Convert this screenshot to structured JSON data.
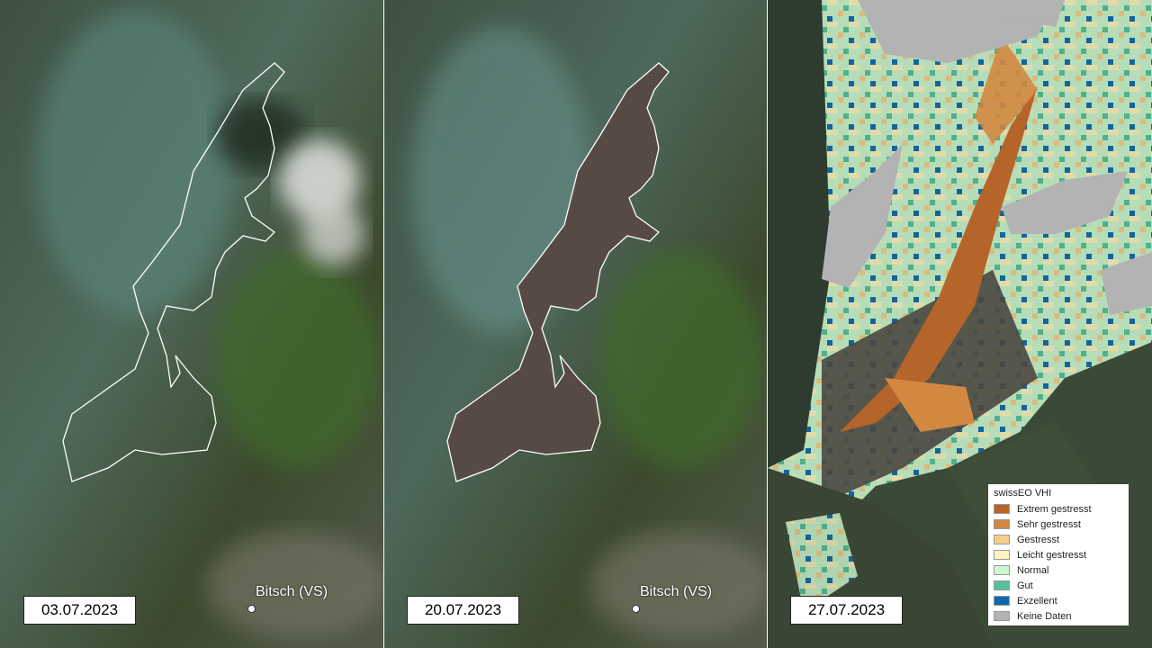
{
  "panels": [
    {
      "date": "03.07.2023",
      "place": "Bitsch (VS)"
    },
    {
      "date": "20.07.2023",
      "place": "Bitsch (VS)"
    },
    {
      "date": "27.07.2023"
    }
  ],
  "legend": {
    "title": "swissEO VHI",
    "items": [
      {
        "label": "Extrem gestresst",
        "color": "#b5652a"
      },
      {
        "label": "Sehr gestresst",
        "color": "#d38841"
      },
      {
        "label": "Gestresst",
        "color": "#f5cf8a"
      },
      {
        "label": "Leicht gestresst",
        "color": "#fdf4c0"
      },
      {
        "label": "Normal",
        "color": "#cdf7cf"
      },
      {
        "label": "Gut",
        "color": "#55c19a"
      },
      {
        "label": "Exzellent",
        "color": "#0b6aad"
      },
      {
        "label": "Keine Daten",
        "color": "#b3b3b3"
      }
    ]
  }
}
